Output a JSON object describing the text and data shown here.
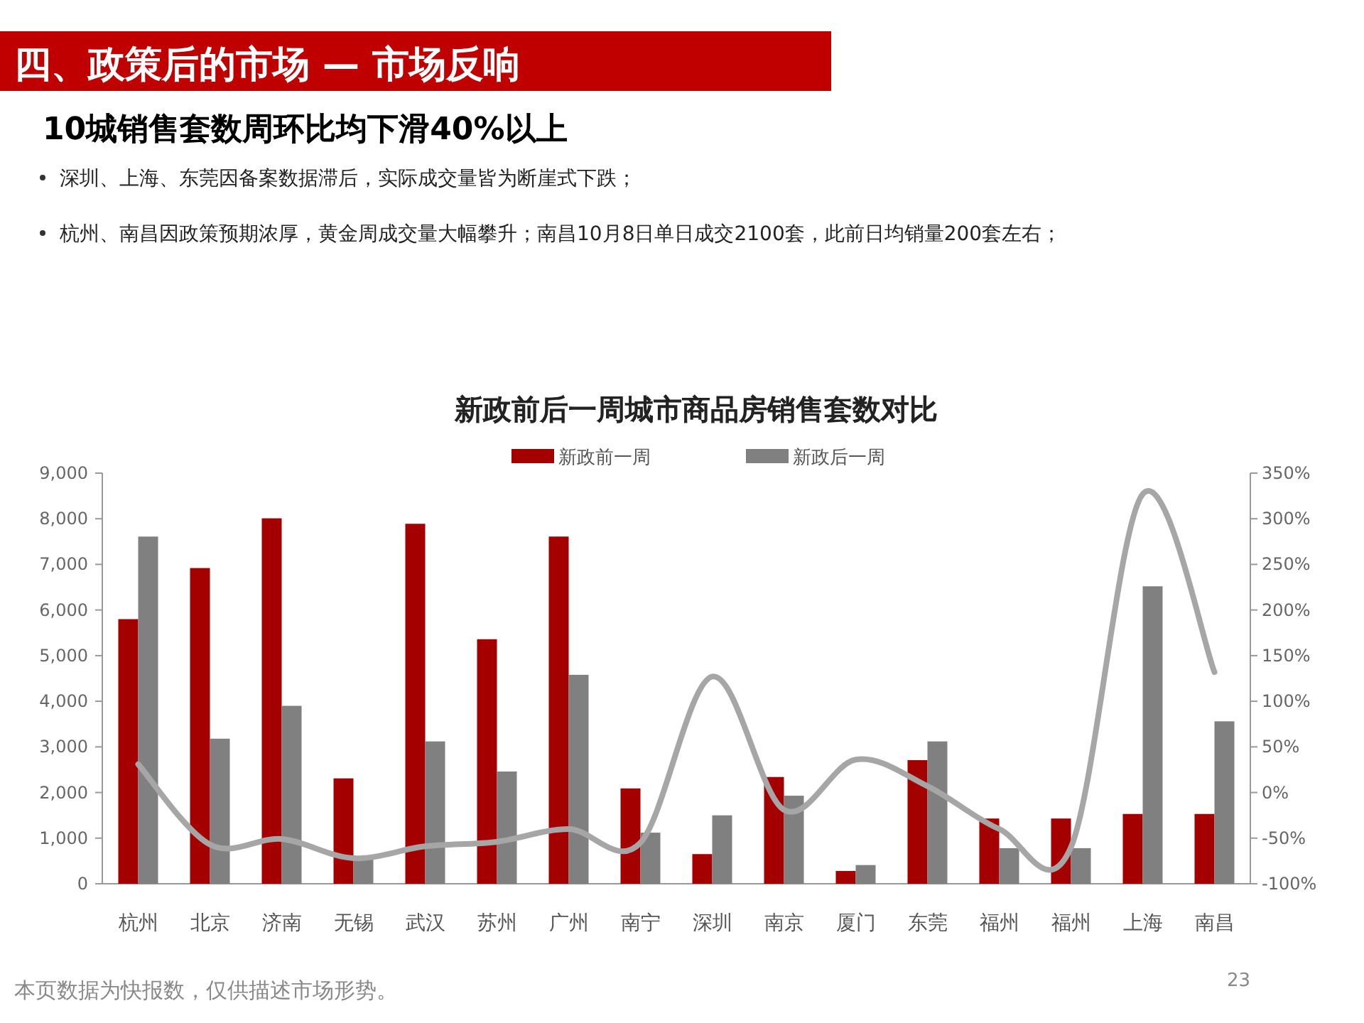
{
  "chart_data": {
    "type": "bar",
    "title": "新政前后一周城市商品房销售套数对比",
    "categories": [
      "杭州",
      "北京",
      "济南",
      "无锡",
      "武汉",
      "苏州",
      "广州",
      "南宁",
      "深圳",
      "南京",
      "厦门",
      "东莞",
      "福州",
      "福州",
      "上海",
      "南昌"
    ],
    "series": [
      {
        "name": "新政前一周",
        "color": "#a50000",
        "values": [
          5800,
          6920,
          8010,
          2310,
          7890,
          5360,
          7610,
          2090,
          650,
          2340,
          280,
          2710,
          1430,
          1430,
          1530,
          1530
        ]
      },
      {
        "name": "新政后一周",
        "color": "#808080",
        "values": [
          7610,
          3180,
          3900,
          590,
          3120,
          2460,
          4580,
          1120,
          1500,
          1930,
          410,
          3120,
          780,
          780,
          6520,
          3560
        ]
      },
      {
        "type": "line",
        "axis": "y2",
        "color": "#a6a6a6",
        "values": [
          31,
          -57,
          -51,
          -72,
          -59,
          -54,
          -40,
          -55,
          127,
          -19,
          36,
          7,
          -40,
          -60,
          327,
          132
        ]
      }
    ],
    "ylim": [
      0,
      9000
    ],
    "yticks": [
      0,
      {
        "value": 1000,
        "label": "1,000"
      },
      {
        "value": 2000,
        "label": "2,000"
      },
      {
        "value": 3000,
        "label": "3,000"
      },
      {
        "value": 4000,
        "label": "4,000"
      },
      {
        "value": 5000,
        "label": "5,000"
      },
      {
        "value": 6000,
        "label": "6,000"
      },
      {
        "value": 7000,
        "label": "7,000"
      },
      {
        "value": 8000,
        "label": "8,000"
      },
      {
        "value": 9000,
        "label": "9,000"
      }
    ],
    "y2lim": [
      -100,
      350
    ],
    "y2ticks": [
      {
        "value": -100,
        "label": "-100%"
      },
      {
        "value": -50,
        "label": "-50%"
      },
      {
        "value": 0,
        "label": "0%"
      },
      {
        "value": 50,
        "label": "50%"
      },
      {
        "value": 100,
        "label": "100%"
      },
      {
        "value": 150,
        "label": "150%"
      },
      {
        "value": 200,
        "label": "200%"
      },
      {
        "value": 250,
        "label": "250%"
      },
      {
        "value": 300,
        "label": "300%"
      },
      {
        "value": 350,
        "label": "350%"
      }
    ],
    "legend": "top",
    "grid": false,
    "annotations": [
      "四、政策后的市场 — 市场反响",
      "10城销售套数周环比均下滑40%以上",
      "深圳、上海、东莞因备案数据滞后，实际成交量皆为断崖式下跌；",
      "杭州、南昌因政策预期浓厚，黄金周成交量大幅攀升；南昌10月8日单日成交2100套，此前日均销量200套左右；",
      "本页数据为快报数，仅供描述市场形势。",
      "23"
    ]
  }
}
